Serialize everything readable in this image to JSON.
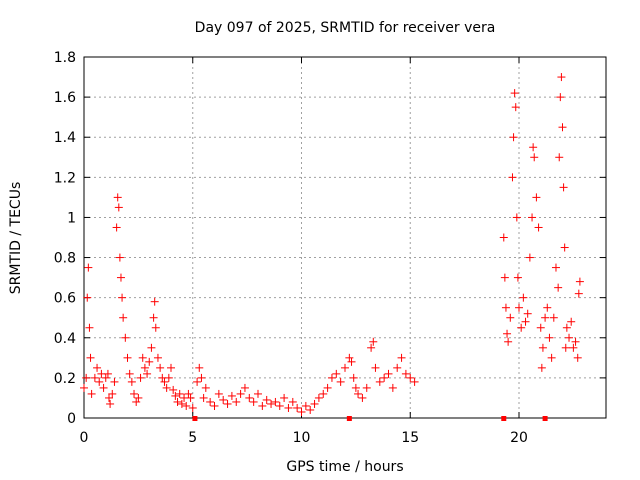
{
  "chart_data": {
    "type": "scatter",
    "title": "Day 097 of 2025, SRMTID for receiver vera",
    "xlabel": "GPS time / hours",
    "ylabel": "SRMTID / TECUs",
    "xlim": [
      0,
      24
    ],
    "ylim": [
      0,
      1.8
    ],
    "x_ticks": [
      0,
      5,
      10,
      15,
      20
    ],
    "x_tick_labels": [
      "0",
      "5",
      "10",
      "15",
      "20"
    ],
    "y_ticks": [
      0,
      0.2,
      0.4,
      0.6,
      0.8,
      1,
      1.2,
      1.4,
      1.6,
      1.8
    ],
    "y_tick_labels": [
      "0",
      "0.2",
      "0.4",
      "0.6",
      "0.8",
      "1",
      "1.2",
      "1.4",
      "1.6",
      "1.8"
    ],
    "grid": true,
    "marker": "+",
    "marker_color": "#ff0000",
    "series": [
      {
        "name": "SRMTID",
        "points": [
          [
            0.0,
            0.15
          ],
          [
            0.1,
            0.2
          ],
          [
            0.15,
            0.6
          ],
          [
            0.2,
            0.75
          ],
          [
            0.25,
            0.45
          ],
          [
            0.3,
            0.3
          ],
          [
            0.35,
            0.12
          ],
          [
            0.5,
            0.2
          ],
          [
            0.6,
            0.25
          ],
          [
            0.7,
            0.18
          ],
          [
            0.8,
            0.22
          ],
          [
            0.9,
            0.15
          ],
          [
            1.0,
            0.2
          ],
          [
            1.1,
            0.22
          ],
          [
            1.15,
            0.1
          ],
          [
            1.2,
            0.07
          ],
          [
            1.3,
            0.12
          ],
          [
            1.4,
            0.18
          ],
          [
            1.5,
            0.95
          ],
          [
            1.55,
            1.1
          ],
          [
            1.6,
            1.05
          ],
          [
            1.65,
            0.8
          ],
          [
            1.7,
            0.7
          ],
          [
            1.75,
            0.6
          ],
          [
            1.8,
            0.5
          ],
          [
            1.9,
            0.4
          ],
          [
            2.0,
            0.3
          ],
          [
            2.1,
            0.22
          ],
          [
            2.2,
            0.18
          ],
          [
            2.3,
            0.12
          ],
          [
            2.4,
            0.08
          ],
          [
            2.5,
            0.1
          ],
          [
            2.6,
            0.2
          ],
          [
            2.7,
            0.3
          ],
          [
            2.8,
            0.25
          ],
          [
            2.9,
            0.22
          ],
          [
            3.0,
            0.28
          ],
          [
            3.1,
            0.35
          ],
          [
            3.2,
            0.5
          ],
          [
            3.25,
            0.58
          ],
          [
            3.3,
            0.45
          ],
          [
            3.4,
            0.3
          ],
          [
            3.5,
            0.25
          ],
          [
            3.6,
            0.2
          ],
          [
            3.7,
            0.18
          ],
          [
            3.8,
            0.15
          ],
          [
            3.9,
            0.2
          ],
          [
            4.0,
            0.25
          ],
          [
            4.1,
            0.14
          ],
          [
            4.2,
            0.11
          ],
          [
            4.3,
            0.08
          ],
          [
            4.4,
            0.12
          ],
          [
            4.5,
            0.07
          ],
          [
            4.6,
            0.1
          ],
          [
            4.7,
            0.06
          ],
          [
            4.8,
            0.12
          ],
          [
            4.9,
            0.1
          ],
          [
            5.0,
            0.05
          ],
          [
            5.2,
            0.18
          ],
          [
            5.3,
            0.25
          ],
          [
            5.4,
            0.2
          ],
          [
            5.5,
            0.1
          ],
          [
            5.6,
            0.15
          ],
          [
            5.8,
            0.08
          ],
          [
            6.0,
            0.06
          ],
          [
            6.2,
            0.12
          ],
          [
            6.4,
            0.09
          ],
          [
            6.6,
            0.07
          ],
          [
            6.8,
            0.11
          ],
          [
            7.0,
            0.08
          ],
          [
            7.2,
            0.12
          ],
          [
            7.4,
            0.15
          ],
          [
            7.6,
            0.1
          ],
          [
            7.8,
            0.08
          ],
          [
            8.0,
            0.12
          ],
          [
            8.2,
            0.06
          ],
          [
            8.4,
            0.09
          ],
          [
            8.6,
            0.07
          ],
          [
            8.8,
            0.08
          ],
          [
            9.0,
            0.06
          ],
          [
            9.2,
            0.1
          ],
          [
            9.4,
            0.05
          ],
          [
            9.6,
            0.08
          ],
          [
            9.8,
            0.05
          ],
          [
            10.0,
            0.03
          ],
          [
            10.2,
            0.06
          ],
          [
            10.4,
            0.04
          ],
          [
            10.6,
            0.07
          ],
          [
            10.8,
            0.1
          ],
          [
            11.0,
            0.12
          ],
          [
            11.2,
            0.15
          ],
          [
            11.4,
            0.2
          ],
          [
            11.6,
            0.22
          ],
          [
            11.8,
            0.18
          ],
          [
            12.0,
            0.25
          ],
          [
            12.2,
            0.3
          ],
          [
            12.3,
            0.28
          ],
          [
            12.4,
            0.2
          ],
          [
            12.5,
            0.15
          ],
          [
            12.6,
            0.12
          ],
          [
            12.8,
            0.1
          ],
          [
            13.0,
            0.15
          ],
          [
            13.2,
            0.35
          ],
          [
            13.3,
            0.38
          ],
          [
            13.4,
            0.25
          ],
          [
            13.6,
            0.18
          ],
          [
            13.8,
            0.2
          ],
          [
            14.0,
            0.22
          ],
          [
            14.2,
            0.15
          ],
          [
            14.4,
            0.25
          ],
          [
            14.6,
            0.3
          ],
          [
            14.8,
            0.22
          ],
          [
            15.0,
            0.2
          ],
          [
            15.2,
            0.18
          ],
          [
            19.3,
            0.9
          ],
          [
            19.35,
            0.7
          ],
          [
            19.4,
            0.55
          ],
          [
            19.45,
            0.42
          ],
          [
            19.5,
            0.38
          ],
          [
            19.6,
            0.5
          ],
          [
            19.7,
            1.2
          ],
          [
            19.75,
            1.4
          ],
          [
            19.8,
            1.62
          ],
          [
            19.85,
            1.55
          ],
          [
            19.9,
            1.0
          ],
          [
            19.95,
            0.7
          ],
          [
            20.0,
            0.55
          ],
          [
            20.1,
            0.45
          ],
          [
            20.2,
            0.6
          ],
          [
            20.3,
            0.48
          ],
          [
            20.4,
            0.52
          ],
          [
            20.5,
            0.8
          ],
          [
            20.6,
            1.0
          ],
          [
            20.65,
            1.35
          ],
          [
            20.7,
            1.3
          ],
          [
            20.8,
            1.1
          ],
          [
            20.9,
            0.95
          ],
          [
            21.0,
            0.45
          ],
          [
            21.05,
            0.25
          ],
          [
            21.1,
            0.35
          ],
          [
            21.2,
            0.5
          ],
          [
            21.3,
            0.55
          ],
          [
            21.4,
            0.4
          ],
          [
            21.5,
            0.3
          ],
          [
            21.6,
            0.5
          ],
          [
            21.7,
            0.75
          ],
          [
            21.8,
            0.65
          ],
          [
            21.85,
            1.3
          ],
          [
            21.9,
            1.6
          ],
          [
            21.95,
            1.7
          ],
          [
            22.0,
            1.45
          ],
          [
            22.05,
            1.15
          ],
          [
            22.1,
            0.85
          ],
          [
            22.15,
            0.35
          ],
          [
            22.2,
            0.45
          ],
          [
            22.3,
            0.4
          ],
          [
            22.4,
            0.48
          ],
          [
            22.5,
            0.35
          ],
          [
            22.6,
            0.38
          ],
          [
            22.7,
            0.3
          ],
          [
            22.75,
            0.62
          ],
          [
            22.8,
            0.68
          ]
        ]
      }
    ],
    "x_axis_marks": [
      5.1,
      12.2,
      19.3,
      21.2
    ]
  }
}
